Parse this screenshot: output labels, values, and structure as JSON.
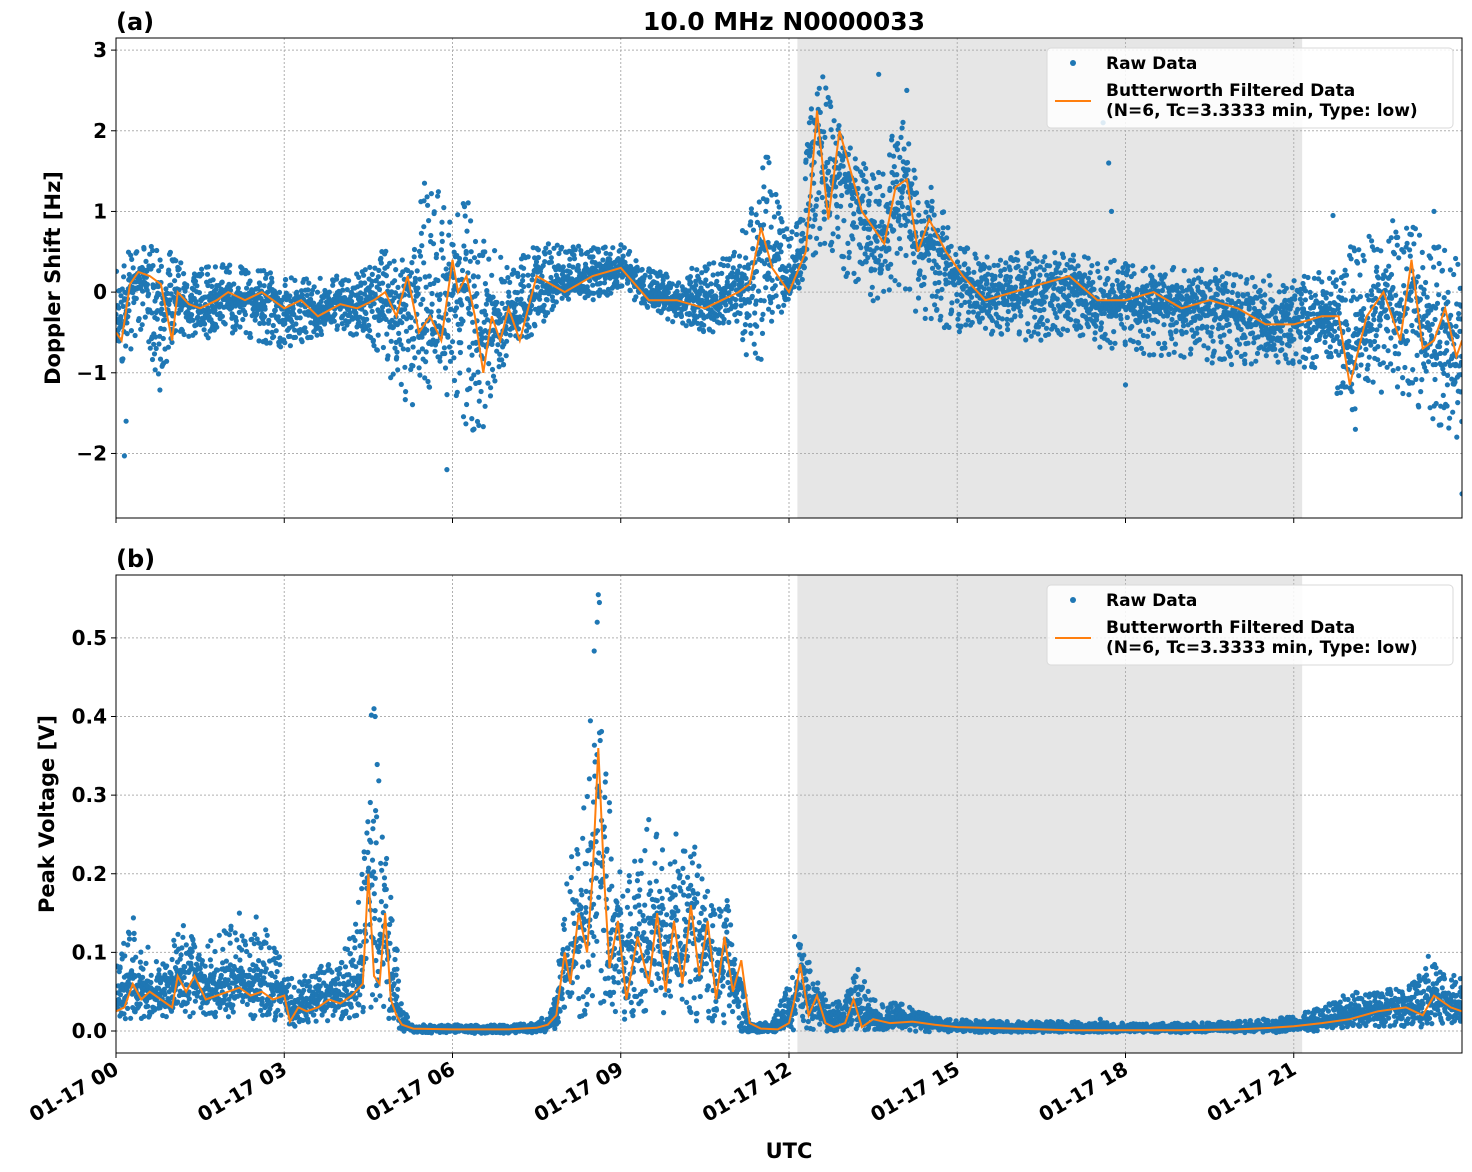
{
  "figure": {
    "title": "10.0 MHz N0000033",
    "xlabel": "UTC",
    "x_tick_labels": [
      "01-17 00",
      "01-17 03",
      "01-17 06",
      "01-17 09",
      "01-17 12",
      "01-17 15",
      "01-17 18",
      "01-17 21"
    ]
  },
  "legend": {
    "raw_label": "Raw Data",
    "filtered_label_line1": "Butterworth Filtered Data",
    "filtered_label_line2": "(N=6, Tc=3.3333 min, Type: low)"
  },
  "colors": {
    "raw": "#1f77b4",
    "filtered": "#ff7f0e",
    "shade": "#e6e6e6"
  },
  "chart_data": [
    {
      "type": "scatter",
      "panel_label": "(a)",
      "title": "10.0 MHz N0000033",
      "xlabel": "",
      "ylabel": "Doppler Shift [Hz]",
      "x_unit": "hours UTC on 01-17",
      "xlim": [
        0,
        24
      ],
      "ylim": [
        -2.8,
        3.15
      ],
      "yticks": [
        -2,
        -1,
        0,
        1,
        2,
        3
      ],
      "ytick_labels": [
        "−2",
        "−1",
        "0",
        "1",
        "2",
        "3"
      ],
      "shaded_span": [
        12.15,
        21.15
      ],
      "grid": true,
      "legend_position": "upper right",
      "series": [
        {
          "name": "Raw Data",
          "style": "points",
          "envelope": {
            "x": [
              0,
              0.2,
              0.5,
              0.8,
              1.0,
              1.5,
              2.0,
              2.5,
              3.0,
              3.5,
              4.0,
              4.5,
              4.8,
              5.2,
              5.5,
              6.0,
              6.3,
              6.6,
              7.0,
              7.5,
              8.0,
              8.5,
              9.0,
              9.5,
              10.0,
              10.5,
              11.0,
              11.3,
              11.6,
              12.0,
              12.2,
              12.5,
              12.8,
              13.0,
              13.3,
              13.6,
              14.0,
              14.3,
              14.6,
              15.0,
              15.5,
              16.0,
              16.5,
              17.0,
              17.5,
              18.0,
              18.5,
              19.0,
              19.5,
              20.0,
              20.5,
              21.0,
              21.5,
              22.0,
              22.5,
              23.0,
              23.5,
              24.0
            ],
            "upper": [
              0.3,
              0.5,
              0.6,
              0.6,
              0.5,
              0.3,
              0.35,
              0.3,
              0.25,
              0.2,
              0.2,
              0.3,
              0.6,
              0.6,
              1.3,
              1.2,
              1.2,
              0.7,
              0.3,
              0.6,
              0.6,
              0.55,
              0.6,
              0.3,
              0.2,
              0.4,
              0.5,
              1.0,
              1.8,
              0.7,
              1.2,
              2.9,
              2.4,
              1.9,
              1.6,
              1.6,
              2.2,
              1.4,
              1.3,
              0.6,
              0.5,
              0.5,
              0.5,
              0.5,
              0.4,
              0.4,
              0.35,
              0.3,
              0.3,
              0.25,
              0.25,
              0.2,
              0.3,
              0.6,
              0.8,
              1.0,
              0.6,
              0.4
            ],
            "lower": [
              -1.2,
              -0.8,
              -0.4,
              -1.3,
              -0.5,
              -0.6,
              -0.5,
              -0.6,
              -0.7,
              -0.6,
              -0.5,
              -0.6,
              -0.9,
              -1.6,
              -1.2,
              -1.3,
              -1.9,
              -1.7,
              -0.7,
              -0.5,
              -0.1,
              -0.1,
              0.0,
              -0.2,
              -0.4,
              -0.5,
              -0.5,
              -1.0,
              -0.8,
              -0.1,
              0.0,
              0.5,
              0.4,
              0.2,
              -0.1,
              -0.2,
              -0.1,
              -0.3,
              -0.4,
              -0.5,
              -0.5,
              -0.6,
              -0.6,
              -0.5,
              -0.7,
              -0.7,
              -0.8,
              -0.8,
              -0.9,
              -0.9,
              -0.9,
              -0.9,
              -1.0,
              -1.5,
              -1.3,
              -1.3,
              -1.6,
              -2.0
            ]
          },
          "outliers": [
            [
              0.15,
              -2.03
            ],
            [
              0.18,
              -1.6
            ],
            [
              5.5,
              1.35
            ],
            [
              5.9,
              -2.2
            ],
            [
              13.6,
              2.7
            ],
            [
              14.1,
              2.5
            ],
            [
              17.6,
              2.1
            ],
            [
              17.7,
              1.6
            ],
            [
              17.75,
              1.0
            ],
            [
              18.0,
              -1.15
            ],
            [
              21.7,
              0.95
            ],
            [
              22.1,
              -1.7
            ],
            [
              23.5,
              1.0
            ],
            [
              24.0,
              -2.5
            ]
          ]
        },
        {
          "name": "Butterworth Filtered Data",
          "style": "line",
          "x": [
            0,
            0.1,
            0.25,
            0.4,
            0.6,
            0.8,
            1.0,
            1.1,
            1.3,
            1.5,
            1.8,
            2.0,
            2.3,
            2.6,
            3.0,
            3.3,
            3.6,
            4.0,
            4.3,
            4.6,
            4.8,
            5.0,
            5.2,
            5.4,
            5.6,
            5.8,
            6.0,
            6.1,
            6.25,
            6.4,
            6.55,
            6.7,
            6.85,
            7.0,
            7.2,
            7.5,
            8.0,
            8.5,
            9.0,
            9.5,
            10.0,
            10.5,
            10.8,
            11.1,
            11.3,
            11.5,
            11.7,
            12.0,
            12.3,
            12.5,
            12.7,
            12.9,
            13.1,
            13.3,
            13.5,
            13.7,
            13.9,
            14.1,
            14.3,
            14.5,
            14.8,
            15.1,
            15.5,
            16.0,
            16.5,
            17.0,
            17.5,
            18.0,
            18.5,
            19.0,
            19.5,
            20.0,
            20.5,
            21.0,
            21.5,
            21.8,
            22.0,
            22.3,
            22.6,
            22.9,
            23.1,
            23.3,
            23.5,
            23.7,
            23.9,
            24.0
          ],
          "y": [
            -0.5,
            -0.6,
            0.1,
            0.25,
            0.2,
            0.1,
            -0.6,
            0.0,
            -0.15,
            -0.2,
            -0.1,
            0.0,
            -0.1,
            0.0,
            -0.2,
            -0.1,
            -0.3,
            -0.15,
            -0.2,
            -0.1,
            0.0,
            -0.3,
            0.2,
            -0.5,
            -0.3,
            -0.6,
            0.4,
            0.0,
            0.2,
            -0.3,
            -1.0,
            -0.3,
            -0.6,
            -0.2,
            -0.6,
            0.2,
            0.0,
            0.2,
            0.3,
            -0.1,
            -0.1,
            -0.2,
            -0.1,
            0.0,
            0.1,
            0.8,
            0.3,
            0.0,
            0.5,
            2.25,
            0.9,
            2.0,
            1.5,
            1.0,
            0.8,
            0.6,
            1.3,
            1.4,
            0.5,
            0.9,
            0.5,
            0.2,
            -0.1,
            0.0,
            0.1,
            0.2,
            -0.1,
            -0.1,
            0.0,
            -0.2,
            -0.1,
            -0.2,
            -0.4,
            -0.4,
            -0.3,
            -0.3,
            -1.15,
            -0.3,
            0.0,
            -0.6,
            0.4,
            -0.7,
            -0.6,
            -0.2,
            -0.8,
            -0.6
          ]
        }
      ]
    },
    {
      "type": "scatter",
      "panel_label": "(b)",
      "title": "",
      "xlabel": "UTC",
      "ylabel": "Peak Voltage [V]",
      "x_unit": "hours UTC on 01-17",
      "xlim": [
        0,
        24
      ],
      "ylim": [
        -0.028,
        0.58
      ],
      "yticks": [
        0.0,
        0.1,
        0.2,
        0.3,
        0.4,
        0.5
      ],
      "ytick_labels": [
        "0.0",
        "0.1",
        "0.2",
        "0.3",
        "0.4",
        "0.5"
      ],
      "shaded_span": [
        12.15,
        21.15
      ],
      "grid": true,
      "legend_position": "upper right",
      "series": [
        {
          "name": "Raw Data",
          "style": "points",
          "envelope": {
            "x": [
              0,
              0.3,
              0.5,
              0.8,
              1.0,
              1.2,
              1.5,
              2.0,
              2.3,
              2.7,
              3.0,
              3.2,
              3.5,
              4.0,
              4.3,
              4.55,
              4.65,
              4.8,
              4.95,
              5.1,
              5.3,
              6.0,
              7.0,
              7.5,
              7.8,
              8.0,
              8.2,
              8.4,
              8.55,
              8.7,
              8.9,
              9.2,
              9.5,
              9.8,
              10.0,
              10.3,
              10.6,
              10.9,
              11.1,
              11.3,
              11.7,
              12.0,
              12.2,
              12.4,
              12.7,
              13.0,
              13.2,
              13.5,
              14.0,
              14.5,
              15.0,
              16.0,
              17.0,
              18.0,
              19.0,
              20.0,
              21.0,
              21.5,
              22.0,
              22.5,
              23.0,
              23.5,
              24.0
            ],
            "upper": [
              0.08,
              0.15,
              0.12,
              0.08,
              0.12,
              0.14,
              0.1,
              0.14,
              0.12,
              0.13,
              0.08,
              0.06,
              0.08,
              0.09,
              0.15,
              0.41,
              0.4,
              0.23,
              0.17,
              0.03,
              0.008,
              0.008,
              0.008,
              0.01,
              0.03,
              0.2,
              0.25,
              0.3,
              0.55,
              0.38,
              0.2,
              0.22,
              0.28,
              0.22,
              0.26,
              0.28,
              0.16,
              0.18,
              0.05,
              0.008,
              0.012,
              0.06,
              0.12,
              0.08,
              0.04,
              0.04,
              0.085,
              0.04,
              0.035,
              0.02,
              0.015,
              0.012,
              0.012,
              0.01,
              0.01,
              0.012,
              0.02,
              0.03,
              0.05,
              0.055,
              0.06,
              0.09,
              0.07
            ],
            "lower": [
              0.015,
              0.015,
              0.015,
              0.015,
              0.02,
              0.02,
              0.015,
              0.015,
              0.015,
              0.015,
              0.01,
              0.005,
              0.01,
              0.015,
              0.015,
              0.03,
              0.03,
              0.02,
              0.005,
              0.0,
              -0.002,
              -0.003,
              -0.003,
              -0.002,
              -0.001,
              0.01,
              0.015,
              0.015,
              0.02,
              0.015,
              0.015,
              0.015,
              0.01,
              0.015,
              0.01,
              0.01,
              0.01,
              0.005,
              0.0,
              -0.002,
              -0.002,
              0.0,
              0.002,
              0.0,
              0.0,
              0.0,
              0.002,
              0.0,
              0.0,
              -0.001,
              -0.002,
              -0.002,
              -0.002,
              -0.002,
              -0.002,
              -0.002,
              -0.002,
              0.0,
              0.005,
              0.005,
              0.005,
              0.005,
              0.005
            ]
          },
          "outliers": [
            [
              2.2,
              0.15
            ],
            [
              2.5,
              0.145
            ],
            [
              4.6,
              0.41
            ],
            [
              4.62,
              0.4
            ],
            [
              8.6,
              0.555
            ],
            [
              8.62,
              0.545
            ],
            [
              8.58,
              0.52
            ],
            [
              12.1,
              0.12
            ],
            [
              17.55,
              0.015
            ],
            [
              23.4,
              0.095
            ]
          ]
        },
        {
          "name": "Butterworth Filtered Data",
          "style": "line",
          "x": [
            0,
            0.15,
            0.3,
            0.45,
            0.6,
            0.8,
            1.0,
            1.1,
            1.25,
            1.4,
            1.6,
            1.8,
            2.0,
            2.2,
            2.4,
            2.6,
            2.8,
            3.0,
            3.1,
            3.25,
            3.4,
            3.6,
            3.8,
            4.0,
            4.2,
            4.4,
            4.5,
            4.6,
            4.7,
            4.8,
            4.9,
            5.0,
            5.1,
            5.3,
            6.0,
            7.0,
            7.5,
            7.7,
            7.85,
            8.0,
            8.1,
            8.25,
            8.4,
            8.5,
            8.6,
            8.7,
            8.8,
            8.95,
            9.1,
            9.3,
            9.5,
            9.65,
            9.8,
            9.95,
            10.1,
            10.25,
            10.4,
            10.55,
            10.7,
            10.85,
            11.0,
            11.15,
            11.3,
            11.5,
            11.8,
            12.0,
            12.1,
            12.2,
            12.35,
            12.5,
            12.65,
            12.8,
            13.0,
            13.15,
            13.3,
            13.5,
            13.8,
            14.2,
            14.6,
            15.0,
            16.0,
            17.0,
            18.0,
            19.0,
            20.0,
            20.6,
            21.0,
            21.5,
            22.0,
            22.5,
            23.0,
            23.3,
            23.5,
            23.8,
            24.0
          ],
          "y": [
            0.025,
            0.03,
            0.06,
            0.04,
            0.05,
            0.04,
            0.03,
            0.07,
            0.05,
            0.07,
            0.04,
            0.045,
            0.05,
            0.055,
            0.045,
            0.05,
            0.04,
            0.045,
            0.012,
            0.03,
            0.025,
            0.03,
            0.04,
            0.035,
            0.045,
            0.06,
            0.2,
            0.07,
            0.06,
            0.15,
            0.04,
            0.02,
            0.008,
            0.003,
            0.002,
            0.002,
            0.004,
            0.008,
            0.02,
            0.1,
            0.06,
            0.15,
            0.1,
            0.2,
            0.36,
            0.2,
            0.08,
            0.14,
            0.04,
            0.12,
            0.06,
            0.15,
            0.05,
            0.14,
            0.06,
            0.16,
            0.07,
            0.14,
            0.04,
            0.12,
            0.05,
            0.09,
            0.01,
            0.003,
            0.002,
            0.01,
            0.04,
            0.085,
            0.02,
            0.045,
            0.01,
            0.005,
            0.01,
            0.04,
            0.005,
            0.015,
            0.01,
            0.012,
            0.008,
            0.005,
            0.003,
            0.001,
            0.001,
            0.001,
            0.002,
            0.004,
            0.006,
            0.01,
            0.015,
            0.025,
            0.03,
            0.02,
            0.045,
            0.03,
            0.025
          ]
        }
      ]
    }
  ]
}
